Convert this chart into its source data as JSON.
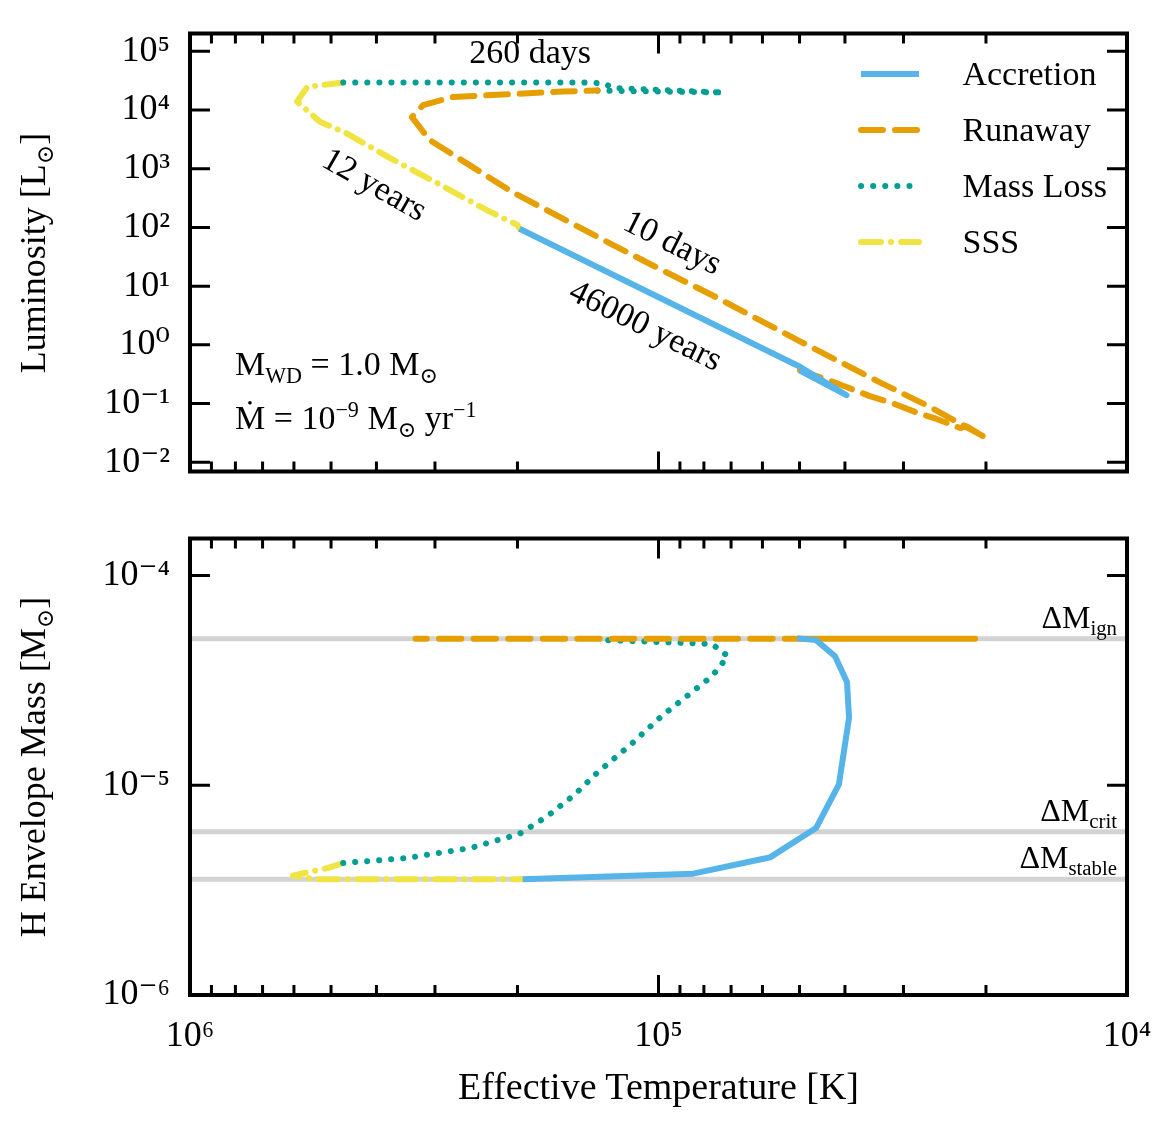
{
  "chart_data": [
    {
      "type": "line",
      "ylabel": "Luminosity [L$_{⊙}$]",
      "log": "xy",
      "tick_labels": "y",
      "legend": "top right",
      "xlim": [
        1000000,
        10000
      ],
      "ylim": [
        0.007,
        200000
      ],
      "xticks": [
        {
          "value": 10000,
          "label": null
        },
        {
          "value": 20000,
          "label": null
        },
        {
          "value": 30000,
          "label": null
        },
        {
          "value": 40000,
          "label": null
        },
        {
          "value": 50000,
          "label": null
        },
        {
          "value": 60000,
          "label": null
        },
        {
          "value": 70000,
          "label": null
        },
        {
          "value": 80000,
          "label": null
        },
        {
          "value": 90000,
          "label": null
        },
        {
          "value": 100000,
          "label": null
        },
        {
          "value": 200000,
          "label": null
        },
        {
          "value": 300000,
          "label": null
        },
        {
          "value": 400000,
          "label": null
        },
        {
          "value": 500000,
          "label": null
        },
        {
          "value": 600000,
          "label": null
        },
        {
          "value": 700000,
          "label": null
        },
        {
          "value": 800000,
          "label": null
        },
        {
          "value": 900000,
          "label": null
        },
        {
          "value": 1000000,
          "label": null
        }
      ],
      "yticks": [
        {
          "value": 0.01,
          "label": "10⁻²"
        },
        {
          "value": 0.1,
          "label": "10⁻¹"
        },
        {
          "value": 1,
          "label": "10⁰"
        },
        {
          "value": 10,
          "label": "10¹"
        },
        {
          "value": 100,
          "label": "10²"
        },
        {
          "value": 1000,
          "label": "10³"
        },
        {
          "value": 10000,
          "label": "10⁴"
        },
        {
          "value": 100000,
          "label": "10⁵"
        }
      ],
      "series": [
        {
          "name": "Accretion",
          "color": "#56b4e9",
          "line_style": "solid",
          "x": [
            198000,
            99400,
            49900,
            39700,
            49900
          ],
          "values": [
            95,
            6.34,
            0.423,
            0.139,
            0.366
          ]
        },
        {
          "name": "Runaway",
          "color": "#e69f00",
          "line_style": "dashed",
          "x": [
            49900,
            43700,
            39700,
            35400,
            31600,
            28100,
            25500,
            22700,
            22000,
            20100,
            26300,
            33700,
            49900,
            76600,
            99400,
            127000,
            205000,
            308000,
            336000,
            318000,
            275000,
            160000,
            135000
          ],
          "values": [
            0.366,
            0.256,
            0.192,
            0.134,
            0.101,
            0.0703,
            0.0547,
            0.0383,
            0.0411,
            0.0267,
            0.0873,
            0.23,
            1.15,
            6.93,
            19.6,
            53.6,
            399,
            3080,
            7560,
            12100,
            16600,
            20700,
            21400
          ]
        },
        {
          "name": "Mass Loss",
          "color": "#009e93",
          "line_style": "dotted",
          "x": [
            135000,
            72800,
            125000,
            131000,
            147000,
            188000,
            279000,
            471000
          ],
          "values": [
            21400,
            19900,
            23800,
            28500,
            29500,
            29500,
            29500,
            29500
          ]
        },
        {
          "name": "SSS",
          "color": "#f0e442",
          "line_style": "dashdot",
          "x": [
            471000,
            562000,
            591000,
            528000,
            462000,
            374000,
            297000,
            232000,
            200000,
            198000
          ],
          "values": [
            29500,
            24700,
            13900,
            6320,
            3970,
            1510,
            572,
            195,
            110,
            95
          ]
        }
      ],
      "annotations": [
        {
          "text": "260 days",
          "x": 188000,
          "y": 29500
        },
        {
          "text": "12 years",
          "x": 374000,
          "y": 1510
        },
        {
          "text": "10 days",
          "x": 99400,
          "y": 19.6
        },
        {
          "text": "46000 years",
          "x": 99400,
          "y": 6.34
        },
        "M$_{WD}$ = 1.0 M$_{⊙}$",
        "Ṁ = 10$^{−9}$ M$_{⊙}$ yr$^{−1}$"
      ]
    },
    {
      "type": "line",
      "xlabel": "Effective Temperature [K]",
      "ylabel": "H Envelope Mass [M$_{⊙}$]",
      "log": "xy",
      "xlim": [
        1000000,
        10000
      ],
      "ylim": [
        1e-06,
        0.00015
      ],
      "xticks": [
        {
          "value": 10000,
          "label": "10⁴"
        },
        {
          "value": 20000,
          "label": null
        },
        {
          "value": 30000,
          "label": null
        },
        {
          "value": 40000,
          "label": null
        },
        {
          "value": 50000,
          "label": null
        },
        {
          "value": 60000,
          "label": null
        },
        {
          "value": 70000,
          "label": null
        },
        {
          "value": 80000,
          "label": null
        },
        {
          "value": 90000,
          "label": null
        },
        {
          "value": 100000,
          "label": "10⁵"
        },
        {
          "value": 200000,
          "label": null
        },
        {
          "value": 300000,
          "label": null
        },
        {
          "value": 400000,
          "label": null
        },
        {
          "value": 500000,
          "label": null
        },
        {
          "value": 600000,
          "label": null
        },
        {
          "value": 700000,
          "label": null
        },
        {
          "value": 800000,
          "label": null
        },
        {
          "value": 900000,
          "label": null
        },
        {
          "value": 1000000,
          "label": "10⁶"
        }
      ],
      "yticks": [
        {
          "value": 1e-06,
          "label": "10⁻⁶"
        },
        {
          "value": 1e-05,
          "label": "10⁻⁵"
        },
        {
          "value": 0.0001,
          "label": "10⁻⁴"
        }
      ],
      "ref_lines": [
        {
          "axis": "y",
          "value": 5e-05,
          "label": "ΔM$_{ign}$",
          "color": "#d3d3d3"
        },
        {
          "axis": "y",
          "value": 6e-06,
          "label": "ΔM$_{crit}$",
          "color": "#d3d3d3"
        },
        {
          "axis": "y",
          "value": 3.56e-06,
          "label": "ΔM$_{stable}$",
          "color": "#d3d3d3"
        }
      ],
      "series": [
        {
          "color": "#56b4e9",
          "line_style": "solid",
          "x": [
            195000,
            84300,
            57800,
            46100,
            41200,
            39200,
            39600,
            42000,
            46100,
            50600
          ],
          "values": [
            3.56e-06,
            3.79e-06,
            4.53e-06,
            6.25e-06,
            1.01e-05,
            2.1e-05,
            3.11e-05,
            4.12e-05,
            4.92e-05,
            5.02e-05
          ]
        },
        {
          "color": "#e69f00",
          "line_style": "dashed",
          "x": [
            50600,
            21100,
            330000
          ],
          "values": [
            5e-05,
            5e-05,
            5e-05
          ]
        },
        {
          "color": "#009e93",
          "line_style": "dotted",
          "x": [
            128000,
            76900,
            71100,
            76900,
            98400,
            114000,
            135000,
            151000,
            173000,
            198000,
            252000,
            347000,
            471000
          ],
          "values": [
            4.92e-05,
            4.72e-05,
            4.12e-05,
            3.31e-05,
            2.14e-05,
            1.58e-05,
            1.15e-05,
            9.02e-06,
            7.1e-06,
            5.87e-06,
            5.02e-06,
            4.49e-06,
            4.26e-06
          ]
        },
        {
          "color": "#f0e442",
          "line_style": "dashdot",
          "x": [
            471000,
            507000,
            603000,
            539000,
            300000,
            195000
          ],
          "values": [
            4.26e-06,
            4.04e-06,
            3.71e-06,
            3.56e-06,
            3.56e-06,
            3.56e-06
          ]
        }
      ]
    }
  ]
}
